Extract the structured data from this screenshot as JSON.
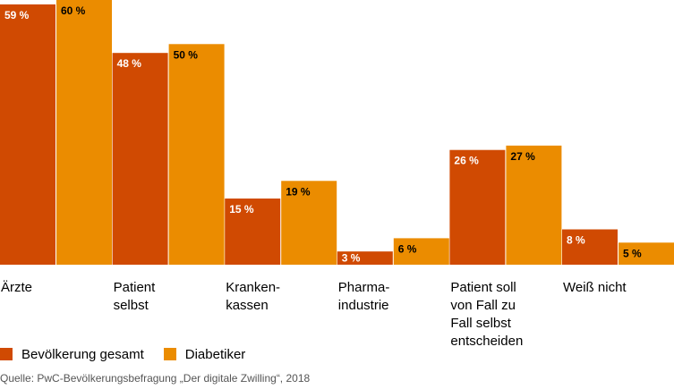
{
  "chart_data": {
    "type": "bar",
    "categories": [
      [
        "Ärzte"
      ],
      [
        "Patient",
        "selbst"
      ],
      [
        "Kranken-",
        "kassen"
      ],
      [
        "Pharma-",
        "industrie"
      ],
      [
        "Patient soll",
        "von Fall zu",
        "Fall selbst",
        "entscheiden"
      ],
      [
        "Weiß nicht"
      ]
    ],
    "series": [
      {
        "name": "Bevölkerung gesamt",
        "color": "#d04a02",
        "values": [
          59,
          48,
          15,
          3,
          26,
          8
        ],
        "labels": [
          "59 %",
          "48 %",
          "15 %",
          "3 %",
          "26 %",
          "8 %"
        ]
      },
      {
        "name": "Diabetiker",
        "color": "#eb8c00",
        "values": [
          60,
          50,
          19,
          6,
          27,
          5
        ],
        "labels": [
          "60 %",
          "50 %",
          "19 %",
          "6 %",
          "27 %",
          "5 %"
        ]
      }
    ],
    "ylim": [
      0,
      60
    ],
    "grid": false,
    "legend": "bottom-left"
  },
  "source": "Quelle: PwC-Bevölkerungsbefragung „Der digitale Zwilling“, 2018"
}
